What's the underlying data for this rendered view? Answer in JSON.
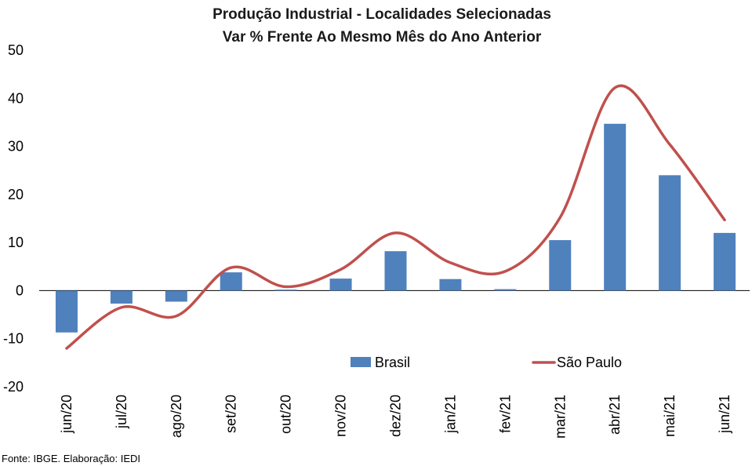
{
  "chart_data": {
    "type": "bar",
    "title": "Produção Industrial - Localidades Selecionadas",
    "subtitle": "Var % Frente Ao Mesmo Mês do Ano Anterior",
    "xlabel": "",
    "ylabel": "",
    "categories": [
      "jun/20",
      "jul/20",
      "ago/20",
      "set/20",
      "out/20",
      "nov/20",
      "dez/20",
      "jan/21",
      "fev/21",
      "mar/21",
      "abr/21",
      "mai/21",
      "jun/21"
    ],
    "series": [
      {
        "name": "Brasil",
        "type": "bar",
        "color": "#4F81BD",
        "values": [
          -8.7,
          -2.7,
          -2.3,
          3.8,
          0.2,
          2.5,
          8.2,
          2.4,
          0.3,
          10.5,
          34.7,
          24.0,
          12.0
        ]
      },
      {
        "name": "São Paulo",
        "type": "line",
        "color": "#C0504D",
        "values": [
          -12.0,
          -3.5,
          -5.3,
          4.8,
          0.8,
          4.4,
          12.0,
          5.8,
          4.0,
          15.2,
          42.2,
          30.4,
          14.7
        ]
      }
    ],
    "ylim": [
      -20,
      50
    ],
    "yticks": [
      -20,
      -10,
      0,
      10,
      20,
      30,
      40,
      50
    ],
    "grid": false,
    "legend_position": "bottom-inside"
  },
  "source_note": "Fonte: IBGE. Elaboração: IEDI"
}
